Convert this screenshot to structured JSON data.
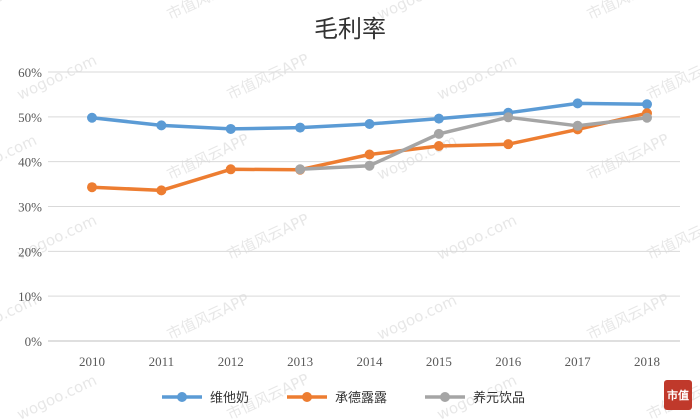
{
  "chart_data": {
    "type": "line",
    "title": "毛利率",
    "x": [
      "2010",
      "2011",
      "2012",
      "2013",
      "2014",
      "2015",
      "2016",
      "2017",
      "2018"
    ],
    "y_ticks": [
      "60%",
      "50%",
      "40%",
      "30%",
      "20%",
      "10%",
      "0%"
    ],
    "ylim": [
      0,
      60
    ],
    "y_unit": "%",
    "grid": true,
    "legend_position": "bottom",
    "series": [
      {
        "name": "维他奶",
        "color": "#5B9BD5",
        "values": [
          49.8,
          48.1,
          47.3,
          47.6,
          48.4,
          49.6,
          50.9,
          53.0,
          52.8
        ]
      },
      {
        "name": "承德露露",
        "color": "#ED7D31",
        "values": [
          34.3,
          33.6,
          38.3,
          38.2,
          41.6,
          43.5,
          43.9,
          47.2,
          50.8
        ]
      },
      {
        "name": "养元饮品",
        "color": "#A5A5A5",
        "values": [
          null,
          null,
          null,
          38.3,
          39.1,
          46.2,
          49.9,
          48.0,
          49.8
        ]
      }
    ]
  },
  "watermark": {
    "text": "市值风云APP",
    "domain": "wogoo.com"
  },
  "stamp": {
    "text": "市值",
    "color": "#C0392B"
  }
}
